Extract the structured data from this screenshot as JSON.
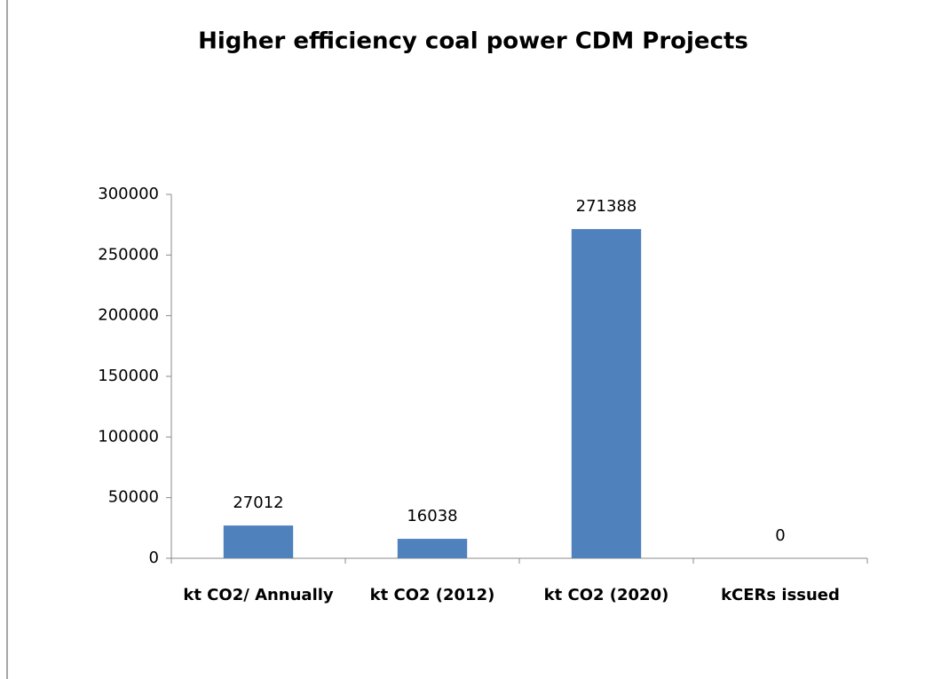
{
  "chart_data": {
    "type": "bar",
    "title": "Higher efficiency coal power CDM Projects",
    "categories": [
      "kt CO2/ Annually",
      "kt CO2 (2012)",
      "kt CO2 (2020)",
      "kCERs issued"
    ],
    "values": [
      27012,
      16038,
      271388,
      0
    ],
    "color": "#4f81bd",
    "ylim": [
      0,
      300000
    ],
    "yticks": [
      0,
      50000,
      100000,
      150000,
      200000,
      250000,
      300000
    ],
    "grid": false
  }
}
